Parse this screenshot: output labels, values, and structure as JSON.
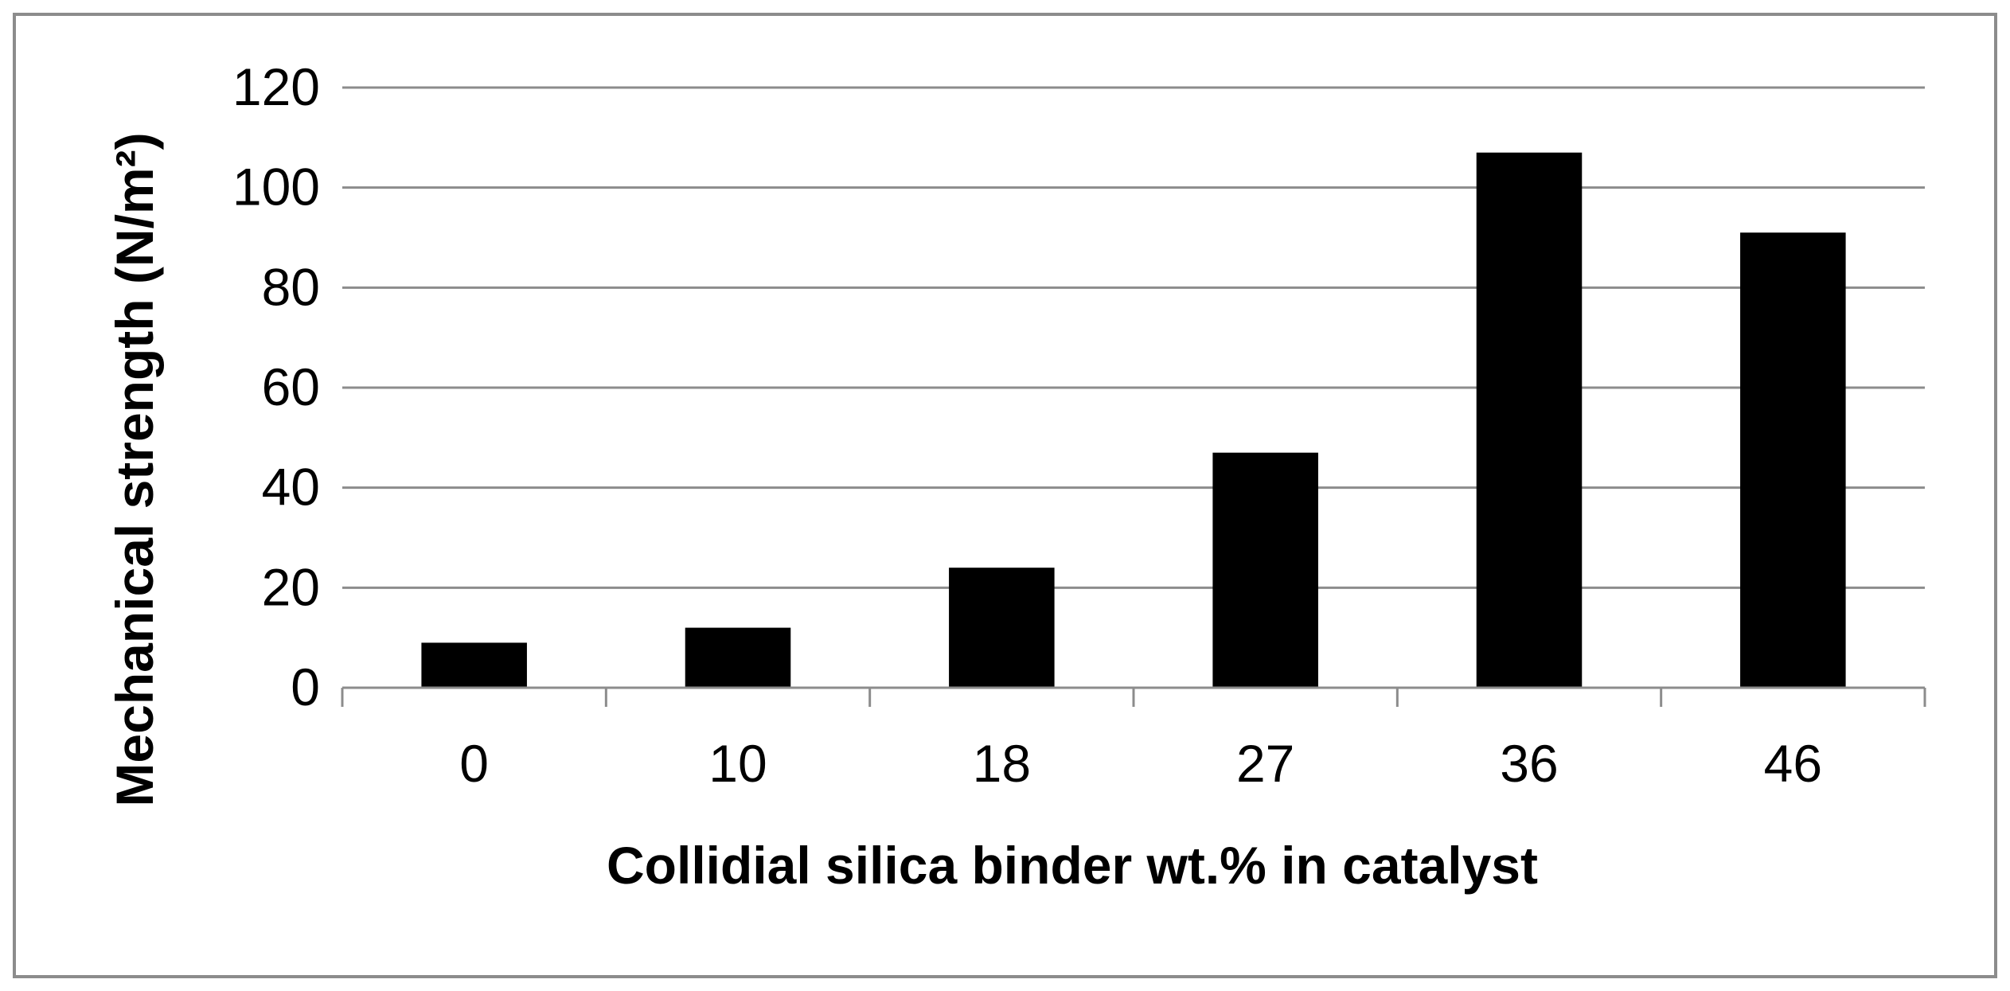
{
  "chart_data": {
    "type": "bar",
    "title": "",
    "xlabel": "Collidial silica binder wt.% in catalyst",
    "ylabel": "Mechanical strength (N/m²)",
    "categories": [
      "0",
      "10",
      "18",
      "27",
      "36",
      "46"
    ],
    "values": [
      9,
      12,
      24,
      47,
      107,
      91
    ],
    "ylim": [
      0,
      120
    ],
    "yticks": [
      "0",
      "20",
      "40",
      "60",
      "80",
      "100",
      "120"
    ],
    "grid": "horizontal",
    "legend": "none",
    "colors": {
      "bar": "#000000",
      "grid": "#8c8c8c",
      "axis": "#8c8c8c",
      "frame": "#8c8c8c",
      "text": "#000000"
    }
  }
}
